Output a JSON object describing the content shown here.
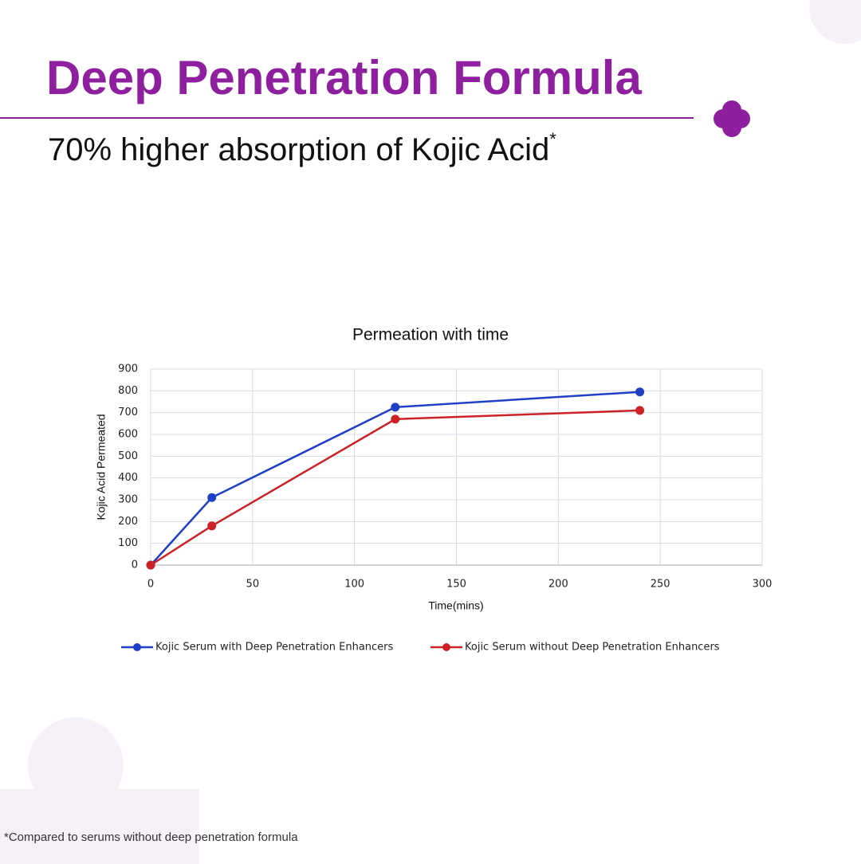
{
  "header": {
    "title": "Deep Penetration Formula",
    "subtitle": "70% higher absorption of Kojic Acid",
    "subtitle_mark": "*"
  },
  "footnote": "*Compared to serums without deep penetration formula",
  "chart_data": {
    "type": "line",
    "title": "Permeation with time",
    "x_label": "Time(mins)",
    "y_label": "Kojic Acid Permeated",
    "x": [
      0,
      30,
      120,
      240
    ],
    "series": [
      {
        "name": "Kojic Serum with Deep Penetration Enhancers",
        "color": "#1f3fc4",
        "values": [
          0,
          310,
          725,
          795
        ]
      },
      {
        "name": "Kojic Serum without Deep Penetration Enhancers",
        "color": "#cc2127",
        "values": [
          0,
          180,
          670,
          710
        ]
      }
    ],
    "xlim": [
      0,
      300
    ],
    "xticks": [
      0,
      50,
      100,
      150,
      200,
      250,
      300
    ],
    "ylim": [
      0,
      900
    ],
    "yticks": [
      0,
      100,
      200,
      300,
      400,
      500,
      600,
      700,
      800,
      900
    ],
    "grid": true,
    "legend": "bottom"
  }
}
